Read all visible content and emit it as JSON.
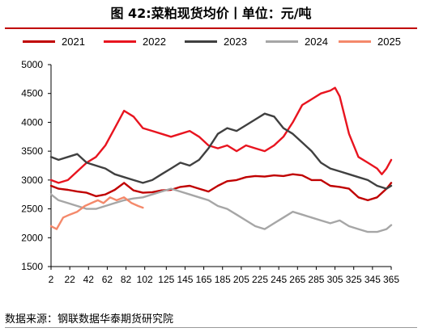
{
  "header": {
    "title": "图 42:菜粕现货均价丨单位：元/吨"
  },
  "footer": {
    "source": "数据来源：钢联数据华泰期货研究院"
  },
  "chart_data": {
    "type": "line",
    "title": "图 42:菜粕现货均价丨单位：元/吨",
    "xlabel": "",
    "ylabel": "",
    "xlim": [
      2,
      365
    ],
    "ylim": [
      1500,
      5000
    ],
    "x_ticks": [
      2,
      22,
      42,
      62,
      82,
      102,
      125,
      145,
      165,
      185,
      205,
      225,
      245,
      265,
      285,
      305,
      325,
      345,
      365
    ],
    "y_ticks": [
      1500,
      2000,
      2500,
      3000,
      3500,
      4000,
      4500,
      5000
    ],
    "grid": false,
    "legend_position": "top",
    "series": [
      {
        "name": "2021",
        "color": "#c00000",
        "x": [
          2,
          10,
          20,
          30,
          40,
          50,
          60,
          70,
          80,
          90,
          100,
          110,
          120,
          130,
          140,
          150,
          160,
          170,
          180,
          190,
          200,
          210,
          220,
          230,
          240,
          250,
          260,
          270,
          280,
          290,
          300,
          310,
          320,
          330,
          340,
          350,
          360,
          365
        ],
        "y": [
          2900,
          2850,
          2830,
          2800,
          2780,
          2720,
          2750,
          2830,
          2950,
          2820,
          2780,
          2790,
          2820,
          2830,
          2880,
          2900,
          2850,
          2800,
          2900,
          2980,
          3000,
          3050,
          3070,
          3060,
          3080,
          3070,
          3100,
          3080,
          3000,
          3000,
          2900,
          2880,
          2850,
          2700,
          2650,
          2700,
          2850,
          2950
        ]
      },
      {
        "name": "2022",
        "color": "#e8141f",
        "x": [
          2,
          10,
          20,
          30,
          40,
          50,
          60,
          70,
          80,
          90,
          100,
          110,
          120,
          130,
          140,
          150,
          160,
          170,
          180,
          190,
          200,
          210,
          220,
          230,
          240,
          250,
          260,
          270,
          280,
          290,
          300,
          305,
          310,
          320,
          330,
          340,
          350,
          355,
          360,
          365
        ],
        "y": [
          3000,
          2950,
          3000,
          3150,
          3300,
          3400,
          3600,
          3900,
          4200,
          4100,
          3900,
          3850,
          3800,
          3750,
          3800,
          3850,
          3750,
          3600,
          3550,
          3600,
          3500,
          3600,
          3550,
          3500,
          3600,
          3750,
          4000,
          4300,
          4400,
          4500,
          4550,
          4600,
          4450,
          3800,
          3400,
          3300,
          3200,
          3100,
          3200,
          3350
        ]
      },
      {
        "name": "2023",
        "color": "#404040",
        "x": [
          2,
          10,
          20,
          30,
          40,
          50,
          60,
          70,
          80,
          90,
          100,
          110,
          120,
          130,
          140,
          150,
          160,
          170,
          180,
          190,
          200,
          210,
          220,
          230,
          240,
          250,
          260,
          270,
          280,
          290,
          300,
          310,
          320,
          330,
          340,
          350,
          360,
          365
        ],
        "y": [
          3400,
          3350,
          3400,
          3450,
          3300,
          3250,
          3200,
          3100,
          3050,
          3000,
          2950,
          3000,
          3100,
          3200,
          3300,
          3250,
          3350,
          3550,
          3800,
          3900,
          3850,
          3950,
          4050,
          4150,
          4100,
          3900,
          3800,
          3650,
          3500,
          3300,
          3200,
          3150,
          3100,
          3050,
          3000,
          2900,
          2850,
          2900
        ]
      },
      {
        "name": "2024",
        "color": "#a6a6a6",
        "x": [
          2,
          10,
          20,
          30,
          40,
          50,
          60,
          70,
          80,
          90,
          100,
          110,
          120,
          130,
          140,
          150,
          160,
          170,
          180,
          190,
          200,
          210,
          220,
          230,
          240,
          250,
          260,
          270,
          280,
          290,
          300,
          310,
          320,
          330,
          340,
          350,
          360,
          365
        ],
        "y": [
          2750,
          2650,
          2600,
          2550,
          2500,
          2500,
          2550,
          2600,
          2650,
          2680,
          2700,
          2750,
          2800,
          2850,
          2800,
          2750,
          2700,
          2650,
          2550,
          2500,
          2400,
          2300,
          2200,
          2150,
          2250,
          2350,
          2450,
          2400,
          2350,
          2300,
          2250,
          2300,
          2200,
          2150,
          2100,
          2100,
          2150,
          2220
        ]
      },
      {
        "name": "2025",
        "color": "#f4896b",
        "x": [
          2,
          8,
          15,
          22,
          30,
          38,
          45,
          52,
          58,
          65,
          72,
          80,
          88,
          95,
          100
        ],
        "y": [
          2200,
          2150,
          2350,
          2400,
          2450,
          2550,
          2600,
          2650,
          2600,
          2700,
          2650,
          2700,
          2600,
          2550,
          2520
        ]
      }
    ]
  }
}
